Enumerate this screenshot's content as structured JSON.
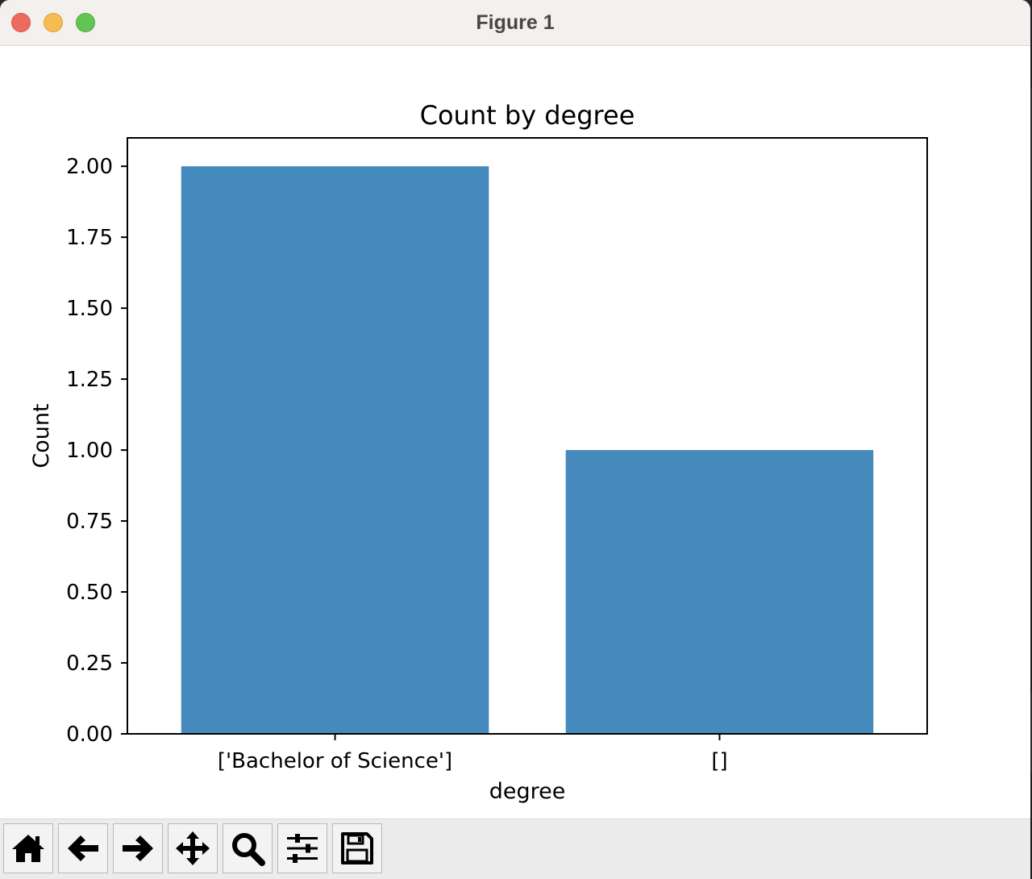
{
  "window": {
    "title": "Figure 1"
  },
  "toolbar": {
    "buttons": [
      {
        "name": "home-button",
        "icon": "home-icon"
      },
      {
        "name": "back-button",
        "icon": "arrow-left-icon"
      },
      {
        "name": "forward-button",
        "icon": "arrow-right-icon"
      },
      {
        "name": "pan-button",
        "icon": "move-icon"
      },
      {
        "name": "zoom-button",
        "icon": "magnifier-icon"
      },
      {
        "name": "configure-subplots-button",
        "icon": "sliders-icon"
      },
      {
        "name": "save-button",
        "icon": "floppy-disk-icon"
      }
    ]
  },
  "chart_data": {
    "type": "bar",
    "title": "Count by degree",
    "xlabel": "degree",
    "ylabel": "Count",
    "categories": [
      "['Bachelor of Science']",
      "[]"
    ],
    "values": [
      2,
      1
    ],
    "ylim": [
      0,
      2.1
    ],
    "yticks": [
      0,
      0.25,
      0.5,
      0.75,
      1.0,
      1.25,
      1.5,
      1.75,
      2.0
    ],
    "ytick_labels": [
      "0.00",
      "0.25",
      "0.50",
      "0.75",
      "1.00",
      "1.25",
      "1.50",
      "1.75",
      "2.00"
    ],
    "bar_color": "#448abd",
    "grid": false,
    "legend": "none"
  }
}
